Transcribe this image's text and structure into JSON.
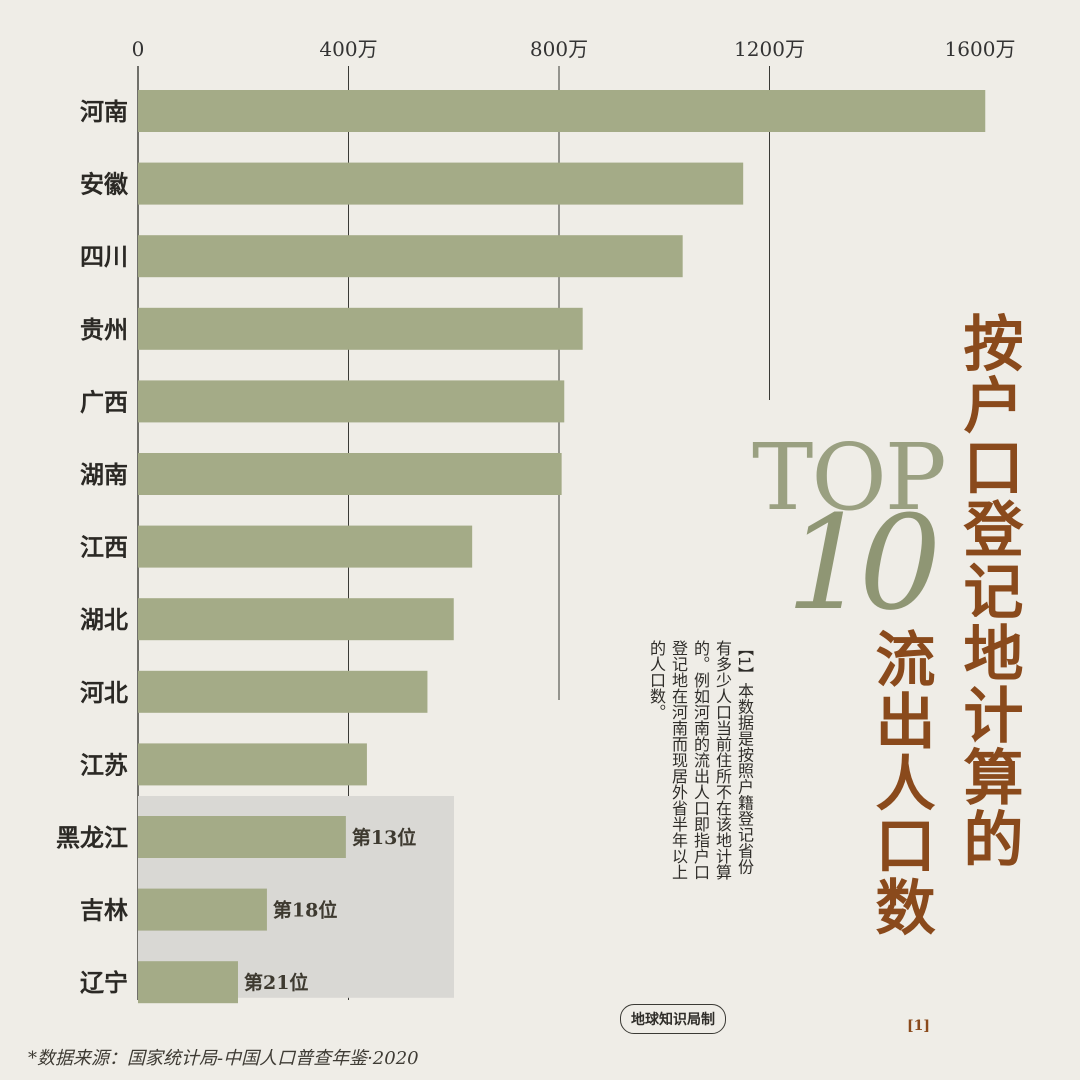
{
  "chart_data": {
    "type": "bar",
    "orientation": "horizontal",
    "categories": [
      "河南",
      "安徽",
      "四川",
      "贵州",
      "广西",
      "湖南",
      "江西",
      "湖北",
      "河北",
      "江苏",
      "黑龙江",
      "吉林",
      "辽宁"
    ],
    "values": [
      1610,
      1150,
      1035,
      845,
      810,
      805,
      635,
      600,
      550,
      435,
      395,
      245,
      190
    ],
    "xlim": [
      0,
      1600
    ],
    "ticks": [
      0,
      400,
      800,
      1200,
      1600
    ],
    "tick_labels": [
      "0",
      "400万",
      "800万",
      "1200万",
      "1600万"
    ],
    "axis_position": "top",
    "highlight_rows": [
      {
        "category": "黑龙江",
        "label": "第13位"
      },
      {
        "category": "吉林",
        "label": "第18位"
      },
      {
        "category": "辽宁",
        "label": "第21位"
      }
    ],
    "bar_color": "#a4ab87",
    "grid_color": "#3a3a36"
  },
  "title": {
    "line1": "按户口登记地计算的",
    "line2": "流出人口数",
    "footnote_mark": "[1]"
  },
  "badge": {
    "top": "TOP",
    "num": "10"
  },
  "note": "【1】本数据是按照户籍登记省份有多少人口当前住所不在该地计算的。例如河南的流出人口即指户口登记地在河南而现居外省半年以上的人口数。",
  "credit": "地球知识局制",
  "source": "*数据来源：国家统计局-中国人口普查年鉴·2020"
}
